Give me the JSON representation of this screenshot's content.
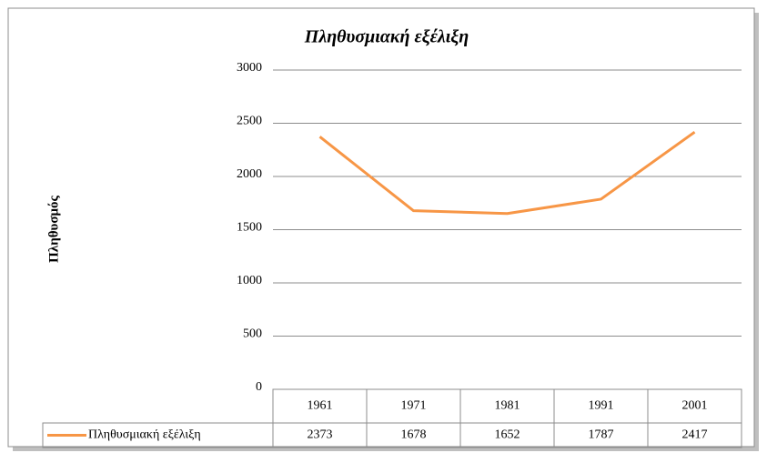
{
  "chart_data": {
    "type": "line",
    "title": "Πληθυσμιακή εξέλιξη",
    "y_label": "Πληθυσμός",
    "categories": [
      "1961",
      "1971",
      "1981",
      "1991",
      "2001"
    ],
    "series": [
      {
        "name": "Πληθυσμιακή εξέλιξη",
        "color": "#f79646",
        "values": [
          2373,
          1678,
          1652,
          1787,
          2417
        ]
      }
    ],
    "ylim": [
      0,
      3000
    ],
    "yticks": [
      0,
      500,
      1000,
      1500,
      2000,
      2500,
      3000
    ],
    "grid": true,
    "data_table": true
  }
}
